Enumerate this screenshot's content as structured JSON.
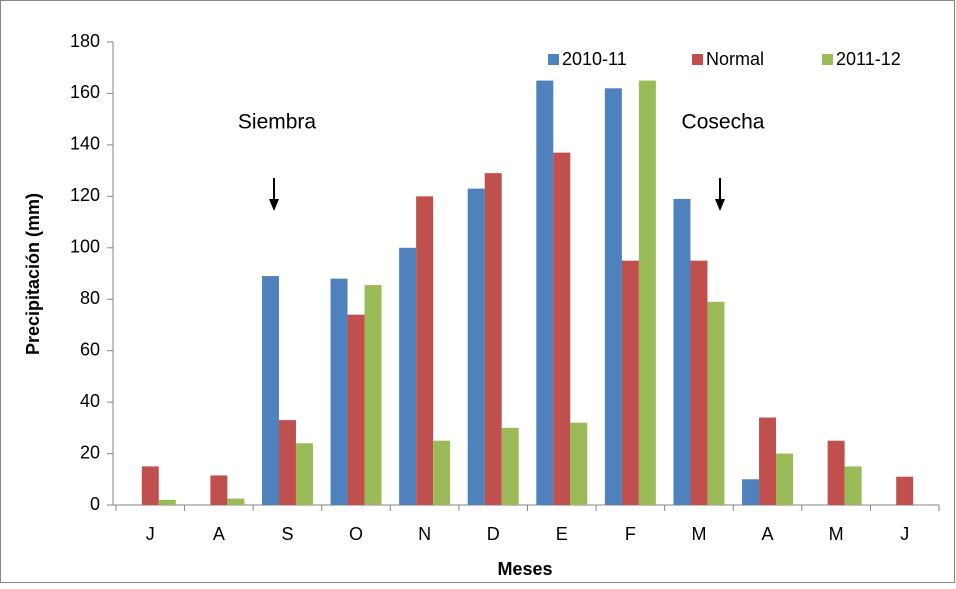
{
  "chart_data": {
    "type": "bar",
    "x_label": "Meses",
    "y_label": "Precipitación (mm)",
    "categories": [
      "J",
      "A",
      "S",
      "O",
      "N",
      "D",
      "E",
      "F",
      "M",
      "A",
      "M",
      "J"
    ],
    "series": [
      {
        "name": "2010-11",
        "color": "#4f81bd",
        "values": [
          null,
          null,
          89,
          88,
          100,
          123,
          165,
          162,
          119,
          10,
          null,
          null
        ]
      },
      {
        "name": "Normal",
        "color": "#c0504d",
        "values": [
          15,
          11.5,
          33,
          74,
          120,
          129,
          137,
          95,
          95,
          34,
          25,
          11
        ]
      },
      {
        "name": "2011-12",
        "color": "#9bbb59",
        "values": [
          2,
          2.5,
          24,
          85.5,
          25,
          30,
          32,
          165,
          79,
          20,
          15,
          null
        ]
      }
    ],
    "ylim": [
      0,
      180
    ],
    "yticks": [
      0,
      20,
      40,
      60,
      80,
      100,
      120,
      140,
      160,
      180
    ],
    "legend": "upper right",
    "annotations": [
      "Siembra",
      "Cosecha"
    ]
  }
}
